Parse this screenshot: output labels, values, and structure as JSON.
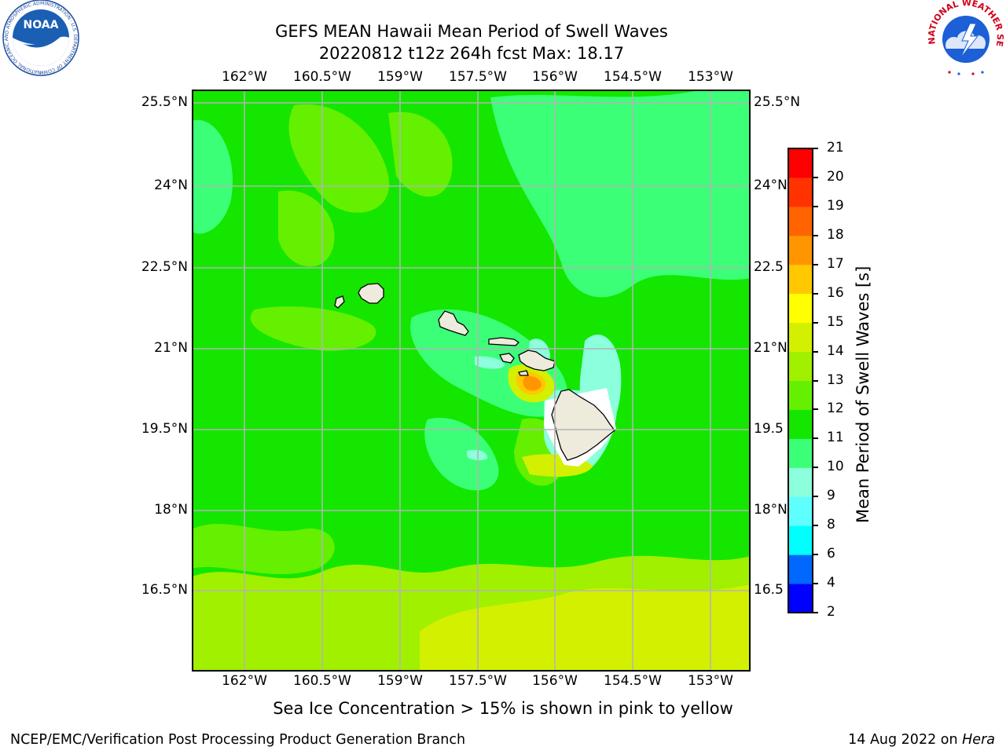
{
  "title": {
    "line1": "GEFS MEAN Hawaii Mean Period of Swell Waves",
    "line2": "20220812 t12z 264h fcst   Max: 18.17"
  },
  "logos": {
    "noaa": {
      "text": "NOAA",
      "ring_text": "NATIONAL OCEANIC AND ATMOSPHERIC ADMINISTRATION · U.S. DEPARTMENT OF COMMERCE"
    },
    "nws": {
      "ring_text": "NATIONAL WEATHER SERVICE"
    }
  },
  "map": {
    "lon_labels": [
      "162°W",
      "160.5°W",
      "159°W",
      "157.5°W",
      "156°W",
      "154.5°W",
      "153°W"
    ],
    "lat_labels_left": [
      "25.5°N",
      "24°N",
      "22.5°N",
      "21°N",
      "19.5°N",
      "18°N",
      "16.5°N"
    ],
    "lat_labels_right": [
      "25.5°N",
      "24°N",
      "22.5",
      "21°N",
      "19.5",
      "18°N",
      "16.5"
    ],
    "lon_range": [
      -163,
      -152.25
    ],
    "lat_range": [
      15,
      25.75
    ]
  },
  "colorbar": {
    "label": "Mean Period of Swell Waves [s]",
    "ticks": [
      "2",
      "4",
      "6",
      "8",
      "9",
      "10",
      "11",
      "12",
      "13",
      "14",
      "15",
      "16",
      "17",
      "18",
      "19",
      "20",
      "21"
    ],
    "colors": [
      "#0000ff",
      "#0068ff",
      "#00ffff",
      "#60ffff",
      "#8cffdc",
      "#3cff78",
      "#14e600",
      "#64f000",
      "#a0f000",
      "#d2f000",
      "#ffff00",
      "#ffc800",
      "#ff9600",
      "#ff6400",
      "#ff3200",
      "#ff0000"
    ]
  },
  "subtitle": "Sea Ice Concentration > 15% is shown in pink to yellow",
  "footer": {
    "left": "NCEP/EMC/Verification Post Processing Product Generation Branch",
    "date": "14 Aug 2022 on ",
    "machine": "Hera"
  }
}
